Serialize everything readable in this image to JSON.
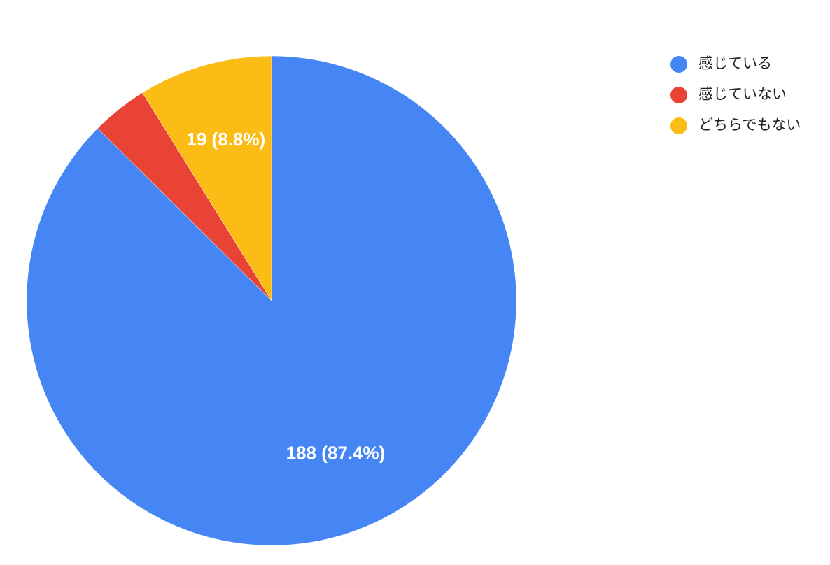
{
  "chart_data": {
    "type": "pie",
    "categories": [
      "感じている",
      "感じていない",
      "どちらでもない"
    ],
    "values": [
      188,
      8,
      19
    ],
    "value_labels": [
      "188 (87.4%)",
      null,
      "19 (8.8%)"
    ],
    "colors": [
      "#4586f4",
      "#e94335",
      "#fbbc16"
    ],
    "legend": "top-right"
  }
}
